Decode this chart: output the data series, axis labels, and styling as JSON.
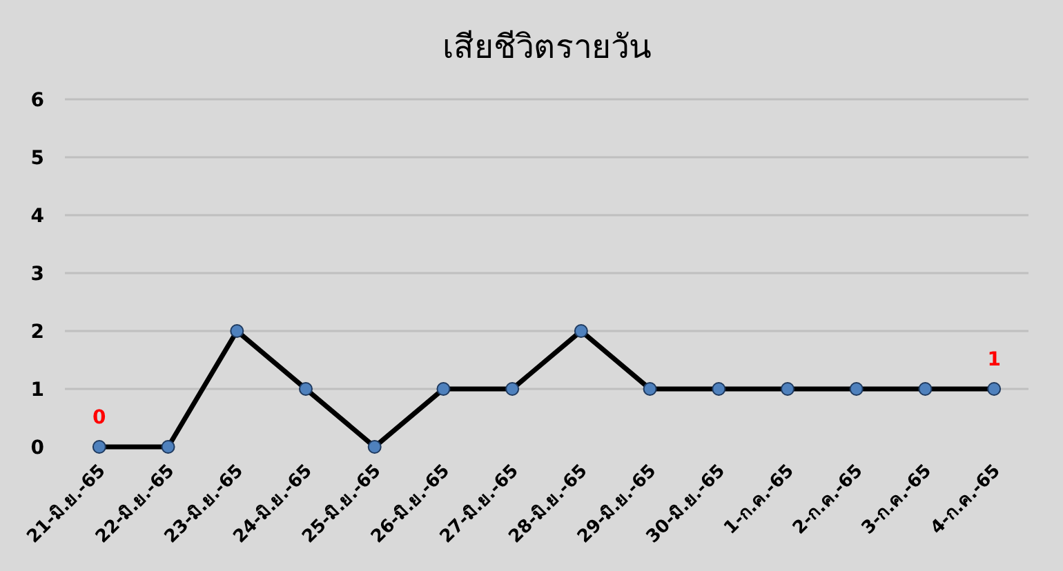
{
  "chart_data": {
    "type": "line",
    "title": "เสียชีวิตรายวัน",
    "categories": [
      "21-มิ.ย.-65",
      "22-มิ.ย.-65",
      "23-มิ.ย.-65",
      "24-มิ.ย.-65",
      "25-มิ.ย.-65",
      "26-มิ.ย.-65",
      "27-มิ.ย.-65",
      "28-มิ.ย.-65",
      "29-มิ.ย.-65",
      "30-มิ.ย.-65",
      "1-ก.ค.-65",
      "2-ก.ค.-65",
      "3-ก.ค.-65",
      "4-ก.ค.-65"
    ],
    "series": [
      {
        "color": "#000000",
        "values": [
          0,
          0,
          2,
          1,
          0,
          1,
          1,
          2,
          1,
          1,
          1,
          1,
          1,
          1
        ],
        "value_labels": [
          "0",
          null,
          null,
          null,
          null,
          null,
          null,
          null,
          null,
          null,
          null,
          null,
          null,
          "1"
        ]
      }
    ],
    "ylim": [
      0,
      6
    ],
    "yticks": [
      0,
      1,
      2,
      3,
      4,
      5,
      6
    ],
    "grid": "y",
    "marker": "circle",
    "line_style": "solid"
  }
}
